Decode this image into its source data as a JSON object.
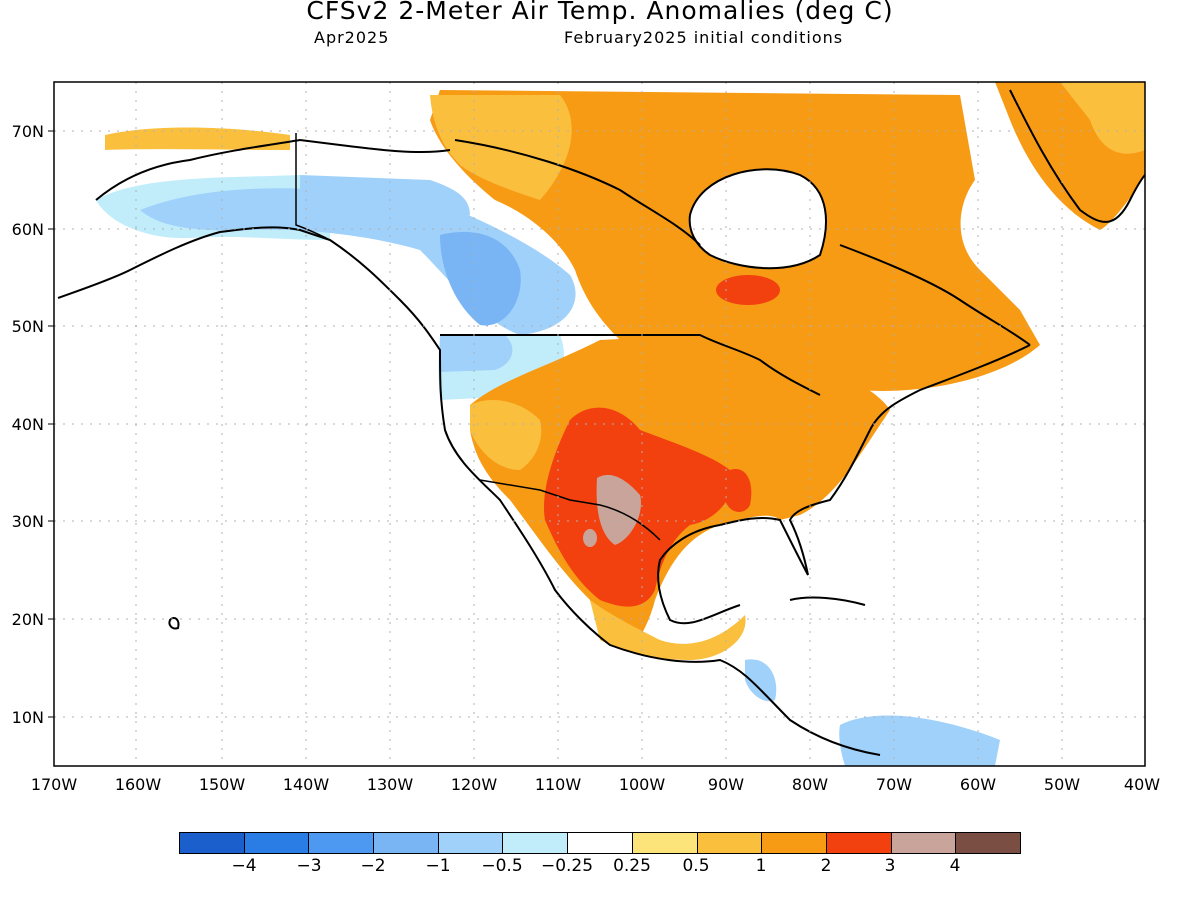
{
  "header": {
    "title": "CFSv2 2-Meter Air Temp. Anomalies (deg C)",
    "valid_month": "Apr2025",
    "initial_conditions": "February2025 initial conditions"
  },
  "map": {
    "lat_labels": [
      "70N",
      "60N",
      "50N",
      "40N",
      "30N",
      "20N",
      "10N"
    ],
    "lon_labels": [
      "170W",
      "160W",
      "150W",
      "140W",
      "130W",
      "120W",
      "110W",
      "100W",
      "90W",
      "80W",
      "70W",
      "60W",
      "50W",
      "40W"
    ]
  },
  "legend": {
    "colors": [
      "#1a5fcc",
      "#2b7de6",
      "#4d98f0",
      "#79b4f5",
      "#9fd1fa",
      "#c1edfb",
      "#ffffff",
      "#fde47a",
      "#fbbf3e",
      "#f79a14",
      "#f2400f",
      "#c9a49a",
      "#7a4e42"
    ],
    "labels": [
      "−4",
      "−3",
      "−2",
      "−1",
      "−0.5",
      "−0.25",
      "0.25",
      "0.5",
      "1",
      "2",
      "3",
      "4"
    ]
  }
}
